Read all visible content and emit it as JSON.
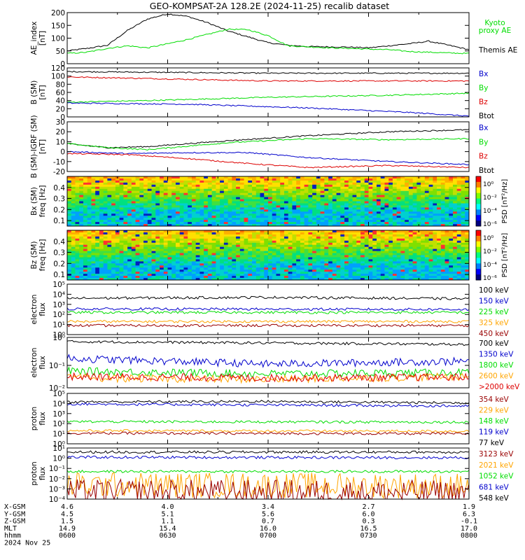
{
  "title": "GEO-KOMPSAT-2A 128.2E (2024-11-25) recalib dataset",
  "colors": {
    "black": "#000000",
    "blue": "#0000cc",
    "green": "#00dd00",
    "red": "#dd0000",
    "orange": "#ffa500",
    "darkred": "#990000",
    "lightgreen": "#00ee00"
  },
  "chart_data": [
    {
      "id": "ae",
      "type": "line",
      "ylabel": [
        "AE_index",
        "[nT]"
      ],
      "ylim": [
        0,
        200
      ],
      "yticks": [
        0,
        50,
        100,
        150,
        200
      ],
      "legend": [
        {
          "label": "Kyoto",
          "color": "#00dd00"
        },
        {
          "label": "proxy AE",
          "color": "#00dd00"
        },
        {
          "label": "Themis AE",
          "color": "#000000"
        }
      ],
      "series": [
        {
          "color": "#000000",
          "x": [
            0,
            0.05,
            0.1,
            0.15,
            0.2,
            0.25,
            0.3,
            0.35,
            0.4,
            0.45,
            0.5,
            0.55,
            0.6,
            0.65,
            0.7,
            0.75,
            0.8,
            0.85,
            0.9,
            0.95,
            1
          ],
          "y": [
            50,
            60,
            72,
            130,
            175,
            195,
            185,
            160,
            128,
            105,
            82,
            72,
            67,
            66,
            65,
            62,
            70,
            78,
            88,
            72,
            55
          ]
        },
        {
          "color": "#00dd00",
          "x": [
            0,
            0.05,
            0.1,
            0.15,
            0.2,
            0.25,
            0.3,
            0.35,
            0.4,
            0.45,
            0.5,
            0.55,
            0.6,
            0.65,
            0.7,
            0.75,
            0.8,
            0.85,
            0.9,
            0.95,
            1
          ],
          "y": [
            40,
            45,
            60,
            70,
            62,
            78,
            95,
            115,
            135,
            133,
            110,
            70,
            66,
            62,
            60,
            57,
            55,
            48,
            45,
            42,
            40
          ]
        }
      ]
    },
    {
      "id": "bsm",
      "type": "line",
      "ylabel": [
        "B (SM)",
        "[nT]"
      ],
      "ylim": [
        0,
        120
      ],
      "yticks": [
        0,
        20,
        40,
        60,
        80,
        100,
        120
      ],
      "legend": [
        {
          "label": "Bx",
          "color": "#0000cc"
        },
        {
          "label": "By",
          "color": "#00dd00"
        },
        {
          "label": "Bz",
          "color": "#dd0000"
        },
        {
          "label": "Btot",
          "color": "#000000"
        }
      ],
      "series": [
        {
          "color": "#000000",
          "x": [
            0,
            0.5,
            1
          ],
          "y": [
            111,
            107,
            107
          ]
        },
        {
          "color": "#dd0000",
          "x": [
            0,
            0.5,
            1
          ],
          "y": [
            98,
            88,
            88
          ]
        },
        {
          "color": "#00dd00",
          "x": [
            0,
            0.2,
            0.5,
            0.8,
            1
          ],
          "y": [
            36,
            40,
            48,
            53,
            58
          ]
        },
        {
          "color": "#0000cc",
          "x": [
            0,
            0.3,
            0.6,
            0.85,
            1
          ],
          "y": [
            34,
            31,
            22,
            11,
            2
          ]
        }
      ]
    },
    {
      "id": "bdiff",
      "type": "line",
      "ylabel": [
        "B (SM)-IGRF (SM)",
        "[nT]"
      ],
      "ylim": [
        -20,
        30
      ],
      "yticks": [
        -20,
        -10,
        0,
        10,
        20,
        30
      ],
      "legend": [
        {
          "label": "Bx",
          "color": "#0000cc"
        },
        {
          "label": "By",
          "color": "#00dd00"
        },
        {
          "label": "Bz",
          "color": "#dd0000"
        },
        {
          "label": "Btot",
          "color": "#000000"
        }
      ],
      "series": [
        {
          "color": "#000000",
          "x": [
            0,
            0.1,
            0.2,
            0.4,
            0.6,
            0.8,
            1
          ],
          "y": [
            8,
            4,
            5,
            11,
            16,
            20,
            22
          ]
        },
        {
          "color": "#00dd00",
          "x": [
            0,
            0.1,
            0.2,
            0.4,
            0.6,
            0.8,
            1
          ],
          "y": [
            8,
            4,
            2,
            9,
            13,
            12,
            13
          ]
        },
        {
          "color": "#0000cc",
          "x": [
            0,
            0.15,
            0.3,
            0.45,
            0.6,
            0.8,
            1
          ],
          "y": [
            0,
            -2,
            -1,
            -1,
            -6,
            -10,
            -13
          ]
        },
        {
          "color": "#dd0000",
          "x": [
            0,
            0.15,
            0.3,
            0.45,
            0.6,
            0.8,
            1
          ],
          "y": [
            -2,
            -3,
            -7,
            -12,
            -16,
            -14,
            -16
          ]
        }
      ]
    },
    {
      "id": "bxspec",
      "type": "heatmap",
      "ylabel": [
        "Bx (SM)",
        "freq [Hz]"
      ],
      "ylim": [
        0.05,
        0.5
      ],
      "yticks": [
        0.1,
        0.2,
        0.3,
        0.4
      ],
      "colorbar": {
        "label": "PSD [nT²/Hz]",
        "ticks": [
          "10⁰",
          "10⁻²",
          "10⁻⁴",
          "10⁻⁶"
        ]
      }
    },
    {
      "id": "bzspec",
      "type": "heatmap",
      "ylabel": [
        "Bz (SM)",
        "freq [Hz]"
      ],
      "ylim": [
        0.05,
        0.5
      ],
      "yticks": [
        0.1,
        0.2,
        0.3,
        0.4
      ],
      "colorbar": {
        "label": "PSD [nT²/Hz]",
        "ticks": [
          "10⁰",
          "10⁻²",
          "10⁻⁴",
          "10⁻⁶"
        ]
      }
    },
    {
      "id": "elow",
      "type": "line",
      "log": true,
      "ylabel": [
        "electron",
        "flux"
      ],
      "ylim": [
        0,
        5
      ],
      "yticks": [
        {
          "label": "10⁰",
          "v": 0
        },
        {
          "label": "10¹",
          "v": 1
        },
        {
          "label": "10²",
          "v": 2
        },
        {
          "label": "10³",
          "v": 3
        },
        {
          "label": "10⁴",
          "v": 4
        },
        {
          "label": "10⁵",
          "v": 5
        }
      ],
      "legend": [
        {
          "label": "100 keV",
          "color": "#000000"
        },
        {
          "label": "150 keV",
          "color": "#0000cc"
        },
        {
          "label": "225 keV",
          "color": "#00dd00"
        },
        {
          "label": "325 keV",
          "color": "#ffa500"
        },
        {
          "label": "450 keV",
          "color": "#990000"
        }
      ],
      "series": [
        {
          "color": "#000000",
          "x": [
            0,
            0.5,
            1
          ],
          "y": [
            3.6,
            3.7,
            3.55
          ]
        },
        {
          "color": "#0000cc",
          "x": [
            0,
            1
          ],
          "y": [
            2.55,
            2.5
          ]
        },
        {
          "color": "#00dd00",
          "x": [
            0,
            1
          ],
          "y": [
            2.2,
            2.2
          ]
        },
        {
          "color": "#ffa500",
          "x": [
            0,
            1
          ],
          "y": [
            1.3,
            1.3
          ]
        },
        {
          "color": "#990000",
          "x": [
            0,
            1
          ],
          "y": [
            0.9,
            0.9
          ]
        }
      ]
    },
    {
      "id": "ehigh",
      "type": "line",
      "log": true,
      "ylabel": [
        "electron",
        "flux"
      ],
      "ylim": [
        -1.8,
        0
      ],
      "yticks": [
        {
          "label": "10⁰",
          "v": 0
        },
        {
          "label": "10⁻¹",
          "v": -1
        },
        {
          "label": "10⁻²",
          "v": -1.8
        }
      ],
      "legend": [
        {
          "label": "700 keV",
          "color": "#000000"
        },
        {
          "label": "1350 keV",
          "color": "#0000cc"
        },
        {
          "label": "1800 keV",
          "color": "#00dd00"
        },
        {
          "label": "2600 keV",
          "color": "#ffa500"
        },
        {
          "label": ">2000 keV",
          "color": "#dd0000"
        }
      ],
      "series": [
        {
          "color": "#000000",
          "x": [
            0,
            0.5,
            1
          ],
          "y": [
            -0.15,
            -0.2,
            -0.25
          ]
        },
        {
          "color": "#0000cc",
          "x": [
            0,
            0.5,
            1
          ],
          "y": [
            -0.75,
            -0.95,
            -0.85
          ]
        },
        {
          "color": "#00dd00",
          "x": [
            0,
            0.5,
            1
          ],
          "y": [
            -1.2,
            -1.3,
            -1.25
          ]
        },
        {
          "color": "#ffa500",
          "x": [
            0,
            0.5,
            1
          ],
          "y": [
            -1.45,
            -1.5,
            -1.4
          ]
        },
        {
          "color": "#dd0000",
          "x": [
            0,
            0.5,
            1
          ],
          "y": [
            -1.4,
            -1.45,
            -1.42
          ]
        }
      ]
    },
    {
      "id": "plow",
      "type": "line",
      "log": true,
      "ylabel": [
        "proton",
        "flux"
      ],
      "ylim": [
        0,
        5
      ],
      "yticks": [
        {
          "label": "10⁰",
          "v": 0
        },
        {
          "label": "10¹",
          "v": 1
        },
        {
          "label": "10²",
          "v": 2
        },
        {
          "label": "10³",
          "v": 3
        },
        {
          "label": "10⁴",
          "v": 4
        },
        {
          "label": "10⁵",
          "v": 5
        }
      ],
      "legend": [
        {
          "label": "354 keV",
          "color": "#990000"
        },
        {
          "label": "229 keV",
          "color": "#ffa500"
        },
        {
          "label": "148 keV",
          "color": "#00dd00"
        },
        {
          "label": "119 keV",
          "color": "#0000cc"
        },
        {
          "label": "77 keV",
          "color": "#000000"
        }
      ],
      "series": [
        {
          "color": "#000000",
          "x": [
            0,
            0.5,
            1
          ],
          "y": [
            4.15,
            4.2,
            4.05
          ]
        },
        {
          "color": "#0000cc",
          "x": [
            0,
            0.5,
            1
          ],
          "y": [
            3.95,
            3.85,
            3.75
          ]
        },
        {
          "color": "#00dd00",
          "x": [
            0,
            1
          ],
          "y": [
            2.2,
            2.15
          ]
        },
        {
          "color": "#ffa500",
          "x": [
            0,
            1
          ],
          "y": [
            1.3,
            1.25
          ]
        },
        {
          "color": "#990000",
          "x": [
            0,
            1
          ],
          "y": [
            1.05,
            1.0
          ]
        }
      ]
    },
    {
      "id": "phigh",
      "type": "line",
      "log": true,
      "ylabel": [
        "proton",
        "flux"
      ],
      "ylim": [
        -4,
        1
      ],
      "yticks": [
        {
          "label": "10¹",
          "v": 1
        },
        {
          "label": "10⁰",
          "v": 0
        },
        {
          "label": "10⁻¹",
          "v": -1
        },
        {
          "label": "10⁻²",
          "v": -2
        },
        {
          "label": "10⁻³",
          "v": -3
        },
        {
          "label": "10⁻⁴",
          "v": -4
        }
      ],
      "legend": [
        {
          "label": "3123 keV",
          "color": "#990000"
        },
        {
          "label": "2021 keV",
          "color": "#ffa500"
        },
        {
          "label": "1052 keV",
          "color": "#00dd00"
        },
        {
          "label": "681 keV",
          "color": "#0000cc"
        },
        {
          "label": "548 keV",
          "color": "#000000"
        }
      ],
      "series": [
        {
          "color": "#000000",
          "x": [
            0,
            1
          ],
          "y": [
            0.6,
            0.6
          ]
        },
        {
          "color": "#0000cc",
          "x": [
            0,
            1
          ],
          "y": [
            0.1,
            0.05
          ]
        },
        {
          "color": "#00dd00",
          "x": [
            0,
            1
          ],
          "y": [
            -1.3,
            -1.3
          ]
        },
        {
          "color": "#ffa500",
          "x": [
            0,
            1
          ],
          "y": [
            -2.6,
            -2.7
          ]
        },
        {
          "color": "#990000",
          "x": [
            0,
            1
          ],
          "y": [
            -3.3,
            -3.4
          ]
        }
      ]
    }
  ],
  "xaxis": {
    "rows": [
      {
        "label": "X-GSM",
        "values": [
          "4.6",
          "4.0",
          "3.4",
          "2.7",
          "1.9"
        ]
      },
      {
        "label": "Y-GSM",
        "values": [
          "4.5",
          "5.1",
          "5.6",
          "6.0",
          "6.3"
        ]
      },
      {
        "label": "Z-GSM",
        "values": [
          "1.5",
          "1.1",
          "0.7",
          "0.3",
          "-0.1"
        ]
      },
      {
        "label": "MLT",
        "values": [
          "14.9",
          "15.4",
          "16.0",
          "16.5",
          "17.0"
        ]
      },
      {
        "label": "hhmm",
        "values": [
          "0600",
          "0630",
          "0700",
          "0730",
          "0800"
        ]
      }
    ],
    "date": "2024 Nov 25"
  }
}
